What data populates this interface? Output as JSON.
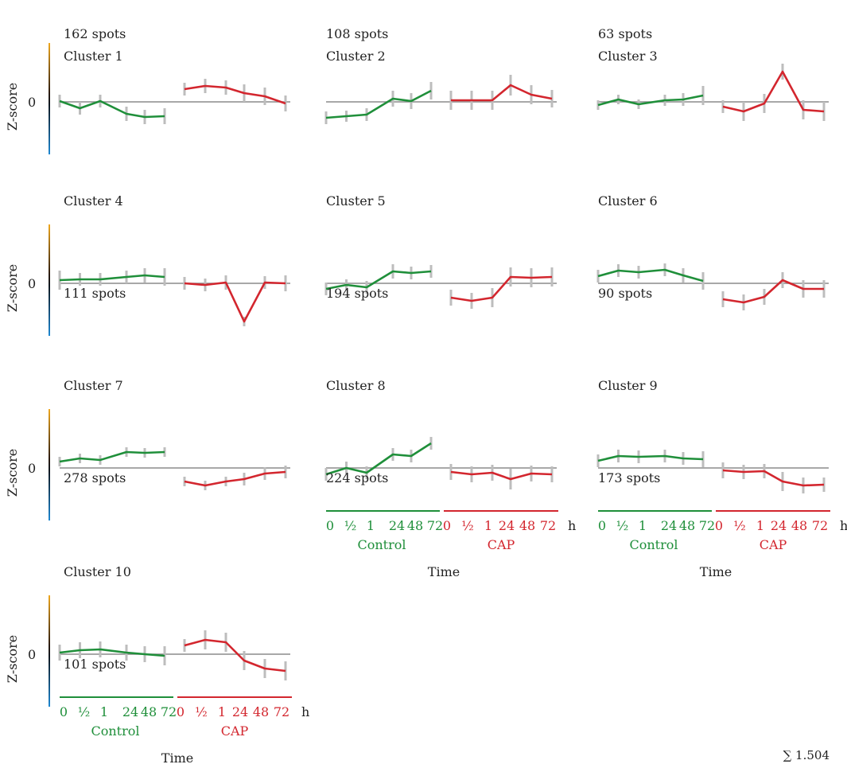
{
  "total_label": "∑ 1.504",
  "chart_data": [
    {
      "type": "line",
      "title": "Cluster 1",
      "count_label": "162 spots",
      "ylabel": "Z-score",
      "zero_label": "0",
      "ylim": [
        -3,
        3
      ],
      "series": [
        {
          "name": "Control",
          "color": "#1f8f3a",
          "values": [
            0.1,
            -0.8,
            0.1,
            -1.5,
            -1.9,
            -1.8
          ],
          "errors": [
            0.8,
            0.8,
            0.8,
            0.9,
            0.9,
            1.0
          ]
        },
        {
          "name": "CAP",
          "color": "#d3262e",
          "values": [
            1.6,
            2.0,
            1.8,
            1.1,
            0.7,
            -0.2
          ],
          "errors": [
            0.8,
            0.9,
            0.9,
            1.1,
            1.1,
            1.0
          ]
        }
      ]
    },
    {
      "type": "line",
      "title": "Cluster 2",
      "count_label": "108 spots",
      "ylabel": "",
      "zero_label": "",
      "ylim": [
        -3,
        3
      ],
      "series": [
        {
          "name": "Control",
          "color": "#1f8f3a",
          "values": [
            -2.0,
            -1.8,
            -1.6,
            0.4,
            0.1,
            1.4
          ],
          "errors": [
            0.8,
            0.7,
            0.8,
            1.0,
            1.0,
            1.1
          ]
        },
        {
          "name": "CAP",
          "color": "#d3262e",
          "values": [
            0.2,
            0.2,
            0.2,
            2.1,
            0.9,
            0.4
          ],
          "errors": [
            1.2,
            1.2,
            1.2,
            1.3,
            1.2,
            1.1
          ]
        }
      ]
    },
    {
      "type": "line",
      "title": "Cluster 3",
      "count_label": "63 spots",
      "ylabel": "",
      "zero_label": "",
      "ylim": [
        -3,
        3
      ],
      "series": [
        {
          "name": "Control",
          "color": "#1f8f3a",
          "values": [
            -0.4,
            0.3,
            -0.3,
            0.2,
            0.3,
            0.8
          ],
          "errors": [
            0.6,
            0.6,
            0.6,
            0.7,
            0.8,
            1.2
          ]
        },
        {
          "name": "CAP",
          "color": "#d3262e",
          "values": [
            -0.6,
            -1.2,
            -0.2,
            3.8,
            -1.0,
            -1.2
          ],
          "errors": [
            0.8,
            1.2,
            1.2,
            1.0,
            1.2,
            1.2
          ]
        }
      ]
    },
    {
      "type": "line",
      "title": "Cluster 4",
      "count_label": "111 spots",
      "ylabel": "Z-score",
      "zero_label": "0",
      "ylim": [
        -3,
        3
      ],
      "series": [
        {
          "name": "Control",
          "color": "#1f8f3a",
          "values": [
            0.4,
            0.5,
            0.5,
            0.8,
            1.0,
            0.8
          ],
          "errors": [
            1.2,
            0.8,
            0.8,
            0.8,
            0.9,
            1.1
          ]
        },
        {
          "name": "CAP",
          "color": "#d3262e",
          "values": [
            0.0,
            -0.2,
            0.1,
            -4.8,
            0.1,
            0.0
          ],
          "errors": [
            0.8,
            0.8,
            0.9,
            0.6,
            0.8,
            1.0
          ]
        }
      ]
    },
    {
      "type": "line",
      "title": "Cluster 5",
      "count_label": "194 spots",
      "ylabel": "",
      "zero_label": "",
      "ylim": [
        -3,
        3
      ],
      "series": [
        {
          "name": "Control",
          "color": "#1f8f3a",
          "values": [
            -0.7,
            -0.2,
            -0.5,
            1.5,
            1.3,
            1.5
          ],
          "errors": [
            0.8,
            0.7,
            0.8,
            0.9,
            0.8,
            0.8
          ]
        },
        {
          "name": "CAP",
          "color": "#d3262e",
          "values": [
            -1.8,
            -2.2,
            -1.8,
            0.8,
            0.7,
            0.8
          ],
          "errors": [
            1.0,
            1.0,
            1.2,
            1.2,
            1.2,
            1.2
          ]
        }
      ]
    },
    {
      "type": "line",
      "title": "Cluster 6",
      "count_label": "90 spots",
      "ylabel": "",
      "zero_label": "",
      "ylim": [
        -3,
        3
      ],
      "series": [
        {
          "name": "Control",
          "color": "#1f8f3a",
          "values": [
            0.9,
            1.6,
            1.4,
            1.7,
            1.0,
            0.3
          ],
          "errors": [
            0.8,
            0.8,
            0.8,
            0.8,
            0.9,
            1.1
          ]
        },
        {
          "name": "CAP",
          "color": "#d3262e",
          "values": [
            -2.0,
            -2.4,
            -1.7,
            0.4,
            -0.7,
            -0.7
          ],
          "errors": [
            1.0,
            1.0,
            1.0,
            1.0,
            1.1,
            1.1
          ]
        }
      ]
    },
    {
      "type": "line",
      "title": "Cluster 7",
      "count_label": "278 spots",
      "ylabel": "Z-score",
      "zero_label": "0",
      "ylim": [
        -3,
        3
      ],
      "series": [
        {
          "name": "Control",
          "color": "#1f8f3a",
          "values": [
            0.8,
            1.2,
            1.0,
            2.0,
            1.9,
            2.0
          ],
          "errors": [
            0.6,
            0.6,
            0.6,
            0.6,
            0.6,
            0.6
          ]
        },
        {
          "name": "CAP",
          "color": "#d3262e",
          "values": [
            -1.7,
            -2.2,
            -1.7,
            -1.4,
            -0.7,
            -0.5
          ],
          "errors": [
            0.6,
            0.6,
            0.6,
            0.8,
            0.8,
            0.8
          ]
        }
      ]
    },
    {
      "type": "line",
      "title": "Cluster 8",
      "count_label": "224 spots",
      "ylabel": "",
      "zero_label": "",
      "ylim": [
        -3,
        3
      ],
      "series": [
        {
          "name": "Control",
          "color": "#1f8f3a",
          "values": [
            -0.8,
            0.0,
            -0.6,
            1.7,
            1.5,
            3.1
          ],
          "errors": [
            0.8,
            0.8,
            0.8,
            0.8,
            0.8,
            0.8
          ]
        },
        {
          "name": "CAP",
          "color": "#d3262e",
          "values": [
            -0.5,
            -0.8,
            -0.6,
            -1.4,
            -0.7,
            -0.8
          ],
          "errors": [
            1.0,
            1.0,
            1.0,
            1.3,
            1.0,
            1.0
          ]
        }
      ]
    },
    {
      "type": "line",
      "title": "Cluster 9",
      "count_label": "173 spots",
      "ylabel": "",
      "zero_label": "",
      "ylim": [
        -3,
        3
      ],
      "series": [
        {
          "name": "Control",
          "color": "#1f8f3a",
          "values": [
            0.9,
            1.5,
            1.4,
            1.5,
            1.2,
            1.1
          ],
          "errors": [
            0.8,
            0.8,
            0.8,
            0.8,
            0.8,
            1.0
          ]
        },
        {
          "name": "CAP",
          "color": "#d3262e",
          "values": [
            -0.3,
            -0.5,
            -0.4,
            -1.7,
            -2.2,
            -2.1
          ],
          "errors": [
            1.0,
            0.9,
            0.9,
            1.2,
            1.0,
            0.9
          ]
        }
      ]
    },
    {
      "type": "line",
      "title": "Cluster 10",
      "count_label": "101  spots",
      "ylabel": "Z-score",
      "zero_label": "0",
      "ylim": [
        -3,
        3
      ],
      "series": [
        {
          "name": "Control",
          "color": "#1f8f3a",
          "values": [
            0.2,
            0.5,
            0.6,
            0.2,
            0.0,
            -0.2
          ],
          "errors": [
            1.0,
            1.0,
            1.0,
            1.0,
            1.0,
            1.2
          ]
        },
        {
          "name": "CAP",
          "color": "#d3262e",
          "values": [
            1.1,
            1.8,
            1.5,
            -0.8,
            -1.8,
            -2.1
          ],
          "errors": [
            0.8,
            1.2,
            1.2,
            1.2,
            1.2,
            1.2
          ]
        }
      ]
    }
  ],
  "time_axis": {
    "tick_labels": [
      "0",
      "½",
      "1",
      "24",
      "48",
      "72"
    ],
    "unit": "h",
    "control_label": "Control",
    "cap_label": "CAP",
    "xlabel": "Time"
  }
}
